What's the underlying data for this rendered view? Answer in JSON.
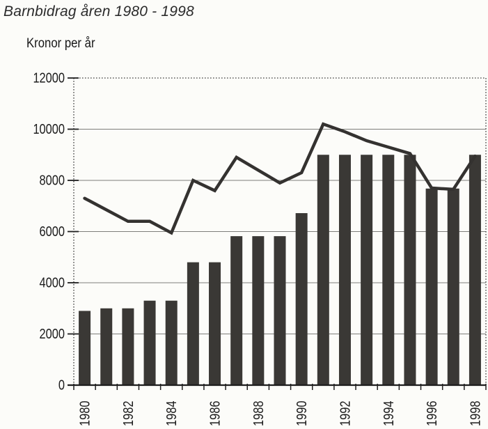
{
  "page": {
    "background": "#fcfcf9"
  },
  "chart_data": {
    "type": "bar+line",
    "title": "Barnbidrag åren 1980 - 1998",
    "ylabel": "Kronor per år",
    "xlabel": "",
    "years": [
      1980,
      1981,
      1982,
      1983,
      1984,
      1985,
      1986,
      1987,
      1988,
      1989,
      1990,
      1991,
      1992,
      1993,
      1994,
      1995,
      1996,
      1997,
      1998
    ],
    "series": [
      {
        "name": "bars",
        "type": "bar",
        "values": [
          2900,
          3000,
          3000,
          3300,
          3300,
          4800,
          4800,
          5820,
          5820,
          5820,
          6720,
          9000,
          9000,
          9000,
          9000,
          9000,
          7680,
          7680,
          9000
        ]
      },
      {
        "name": "line",
        "type": "line",
        "values": [
          7300,
          6850,
          6400,
          6400,
          5950,
          8000,
          7600,
          8900,
          8400,
          7900,
          8300,
          10200,
          9900,
          9550,
          9300,
          9050,
          7700,
          7650,
          8950
        ]
      }
    ],
    "ylim": [
      0,
      12000
    ],
    "yticks": [
      0,
      2000,
      4000,
      6000,
      8000,
      10000,
      12000
    ],
    "xticks_labeled": [
      1980,
      1982,
      1984,
      1986,
      1988,
      1990,
      1992,
      1994,
      1996,
      1998
    ],
    "grid": "solid horizontal gridlines at 2000-10000; dotted frame on top, left and right",
    "legend": "none",
    "colors": {
      "bar": "#3a3835",
      "line": "#343230",
      "grid": "#7e7e7a",
      "frame": "#3c3c3c",
      "axis": "#1e1e1e",
      "text": "#1c1c1c",
      "background": "#fcfcf9"
    }
  }
}
